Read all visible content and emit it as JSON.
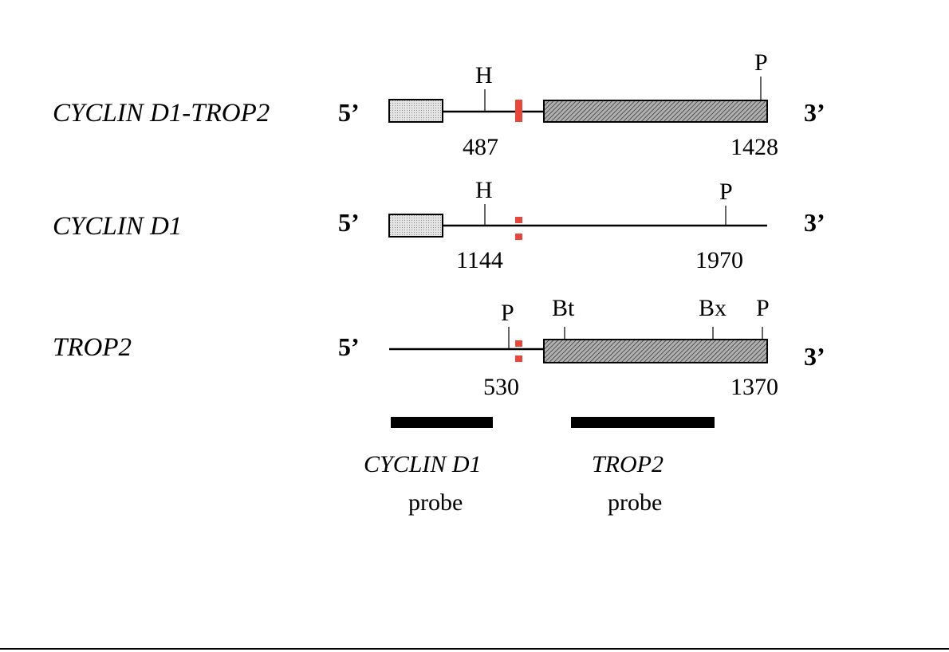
{
  "rows": [
    {
      "name": "CYCLIN D1-TROP2",
      "five": "5’",
      "three": "3’",
      "sites": [
        "H",
        "P"
      ],
      "positions": [
        "487",
        "1428"
      ]
    },
    {
      "name": "CYCLIN D1",
      "five": "5’",
      "three": "3’",
      "sites": [
        "H",
        "P"
      ],
      "positions": [
        "1144",
        "1970"
      ]
    },
    {
      "name": "TROP2",
      "five": "5’",
      "three": "3’",
      "sites": [
        "P",
        "Bt",
        "Bx",
        "P"
      ],
      "positions": [
        "530",
        "1370"
      ]
    }
  ],
  "probes": [
    {
      "name": "CYCLIN D1",
      "word": "probe"
    },
    {
      "name": "TROP2",
      "word": "probe"
    }
  ],
  "colors": {
    "junction": "#e8463a",
    "line": "#000000",
    "cyclin_box": "#d9d9d9",
    "trop2_box": "#9a9a9a"
  }
}
